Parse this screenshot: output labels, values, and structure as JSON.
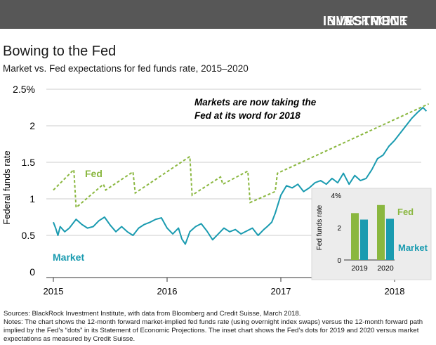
{
  "header": {
    "brand_light": "BLACKROCK",
    "brand_bold": "INVESTMENT",
    "brand_tail": "INSTITUTE"
  },
  "title": "Bowing to the Fed",
  "subtitle": "Market vs. Fed expectations for fed funds rate, 2015–2020",
  "notes": {
    "sources": "Sources: BlackRock Investment Institute, with data from Bloomberg and Credit Suisse, March 2018.",
    "text": "Notes: The chart shows the 12-month forward market-implied fed funds rate (using overnight index swaps) versus the 12-month forward path implied by the Fed’s “dots” in its Statement of Economic Projections. The inset chart shows the Fed’s dots for 2019 and 2020 versus market expectations as measured by Credit Suisse."
  },
  "colors": {
    "fed": "#8ab73f",
    "market": "#1a9bb0",
    "header": "#575757",
    "grid": "#cccccc",
    "inset_bg": "#ececec"
  },
  "chart_data": [
    {
      "type": "line",
      "ylabel": "Federal funds rate",
      "xlabel": "",
      "y_tick_labels": [
        "0",
        "0.5",
        "1",
        "1.5",
        "2",
        "2.5%"
      ],
      "y_ticks": [
        0,
        0.5,
        1,
        1.5,
        2,
        2.5
      ],
      "ylim": [
        0,
        2.5
      ],
      "xlim": [
        2015.0,
        2018.3
      ],
      "x_tick_labels": [
        "2015",
        "2016",
        "2017",
        "2018"
      ],
      "x_ticks": [
        2015,
        2016,
        2017,
        2018
      ],
      "grid": true,
      "annotation": [
        "Markets are now taking the",
        "Fed at its word for 2018"
      ],
      "series": [
        {
          "name": "Fed",
          "style": "dashed",
          "x": [
            2015.0,
            2015.18,
            2015.2,
            2015.44,
            2015.46,
            2015.7,
            2015.72,
            2016.2,
            2016.22,
            2016.47,
            2016.49,
            2016.71,
            2016.73,
            2016.95,
            2016.97,
            2018.3
          ],
          "values": [
            1.12,
            1.4,
            0.88,
            1.2,
            1.12,
            1.37,
            1.08,
            1.58,
            1.05,
            1.3,
            1.2,
            1.38,
            0.95,
            1.1,
            1.35,
            2.3
          ]
        },
        {
          "name": "Market",
          "style": "solid",
          "x": [
            2015.0,
            2015.02,
            2015.04,
            2015.06,
            2015.1,
            2015.14,
            2015.2,
            2015.25,
            2015.3,
            2015.35,
            2015.4,
            2015.45,
            2015.5,
            2015.55,
            2015.6,
            2015.65,
            2015.7,
            2015.75,
            2015.8,
            2015.85,
            2015.9,
            2015.95,
            2016.0,
            2016.05,
            2016.1,
            2016.13,
            2016.16,
            2016.2,
            2016.25,
            2016.3,
            2016.35,
            2016.4,
            2016.45,
            2016.5,
            2016.55,
            2016.6,
            2016.65,
            2016.7,
            2016.75,
            2016.8,
            2016.85,
            2016.88,
            2016.92,
            2016.95,
            2016.98,
            2017.0,
            2017.05,
            2017.1,
            2017.15,
            2017.2,
            2017.25,
            2017.3,
            2017.35,
            2017.4,
            2017.45,
            2017.5,
            2017.55,
            2017.6,
            2017.65,
            2017.7,
            2017.75,
            2017.8,
            2017.85,
            2017.9,
            2017.95,
            2018.0,
            2018.05,
            2018.1,
            2018.15,
            2018.2,
            2018.25,
            2018.28
          ],
          "values": [
            0.68,
            0.6,
            0.5,
            0.62,
            0.55,
            0.6,
            0.72,
            0.65,
            0.6,
            0.62,
            0.7,
            0.75,
            0.64,
            0.55,
            0.62,
            0.55,
            0.5,
            0.6,
            0.65,
            0.68,
            0.72,
            0.74,
            0.6,
            0.52,
            0.6,
            0.45,
            0.38,
            0.55,
            0.62,
            0.66,
            0.56,
            0.44,
            0.52,
            0.6,
            0.55,
            0.58,
            0.52,
            0.56,
            0.6,
            0.5,
            0.58,
            0.62,
            0.68,
            0.8,
            0.95,
            1.05,
            1.18,
            1.15,
            1.2,
            1.1,
            1.15,
            1.22,
            1.25,
            1.2,
            1.28,
            1.22,
            1.35,
            1.2,
            1.32,
            1.25,
            1.28,
            1.4,
            1.55,
            1.6,
            1.72,
            1.8,
            1.9,
            2.0,
            2.1,
            2.18,
            2.25,
            2.2
          ]
        }
      ]
    },
    {
      "type": "bar",
      "categories": [
        "2019",
        "2020"
      ],
      "ylim": [
        0,
        4
      ],
      "ylabel": "Fed funds rate",
      "y_tick_labels": [
        "0",
        "2",
        "4%"
      ],
      "y_ticks": [
        0,
        2,
        4
      ],
      "series": [
        {
          "name": "Fed",
          "values": [
            2.9,
            3.4
          ]
        },
        {
          "name": "Market",
          "values": [
            2.5,
            2.55
          ]
        }
      ]
    }
  ]
}
